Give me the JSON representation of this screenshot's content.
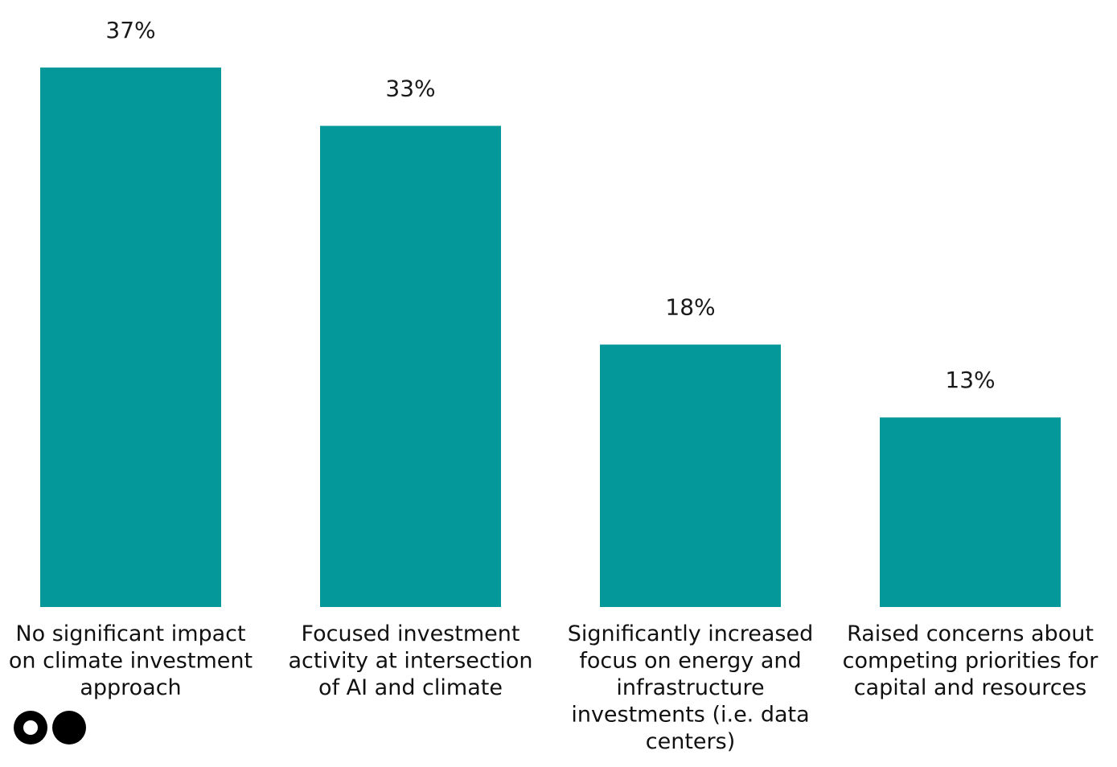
{
  "chart_data": {
    "type": "bar",
    "title": "",
    "xlabel": "",
    "ylabel": "",
    "ylim": [
      0,
      37
    ],
    "grid": false,
    "bar_color": "#04989b",
    "categories": [
      "No significant impact on climate investment approach",
      "Focused investment activity at intersection of AI and climate",
      "Significantly increased focus on energy and infrastructure investments (i.e. data centers)",
      "Raised concerns about competing priorities for capital and resources"
    ],
    "category_lines": [
      [
        "No significant impact",
        "on climate investment",
        "approach"
      ],
      [
        "Focused investment",
        "activity at intersection",
        "of AI and climate"
      ],
      [
        "Significantly increased",
        "focus on energy and",
        "infrastructure",
        "investments (i.e. data",
        "centers)"
      ],
      [
        "Raised concerns about",
        "competing priorities for",
        "capital and resources"
      ]
    ],
    "values": [
      37,
      33,
      18,
      13
    ],
    "value_labels": [
      "37%",
      "33%",
      "18%",
      "13%"
    ]
  },
  "logo": {
    "icon": "two-dots-logo-icon"
  }
}
